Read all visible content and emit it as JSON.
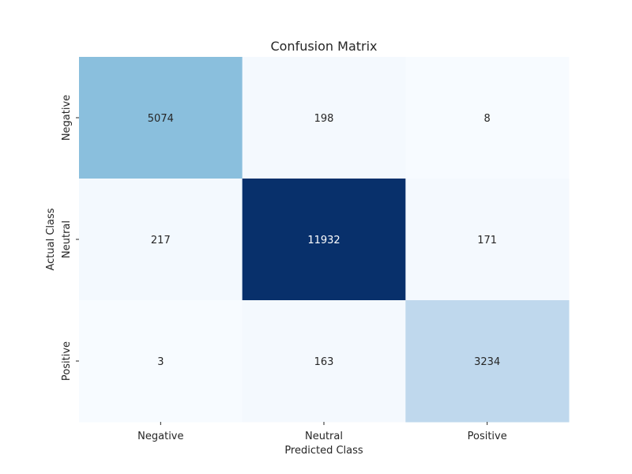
{
  "chart_data": {
    "type": "heatmap",
    "title": "Confusion Matrix",
    "xlabel": "Predicted Class",
    "ylabel": "Actual Class",
    "x_categories": [
      "Negative",
      "Neutral",
      "Positive"
    ],
    "y_categories": [
      "Negative",
      "Neutral",
      "Positive"
    ],
    "values": [
      [
        5074,
        198,
        8
      ],
      [
        217,
        11932,
        171
      ],
      [
        3,
        163,
        3234
      ]
    ],
    "colormap": "Blues",
    "color_low": "#f7fbff",
    "color_high": "#08306b",
    "grid": false,
    "colorbar": false
  }
}
